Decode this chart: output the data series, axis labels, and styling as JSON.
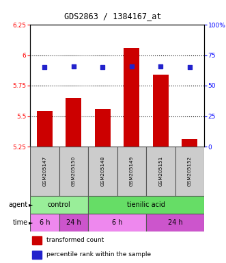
{
  "title": "GDS2863 / 1384167_at",
  "samples": [
    "GSM205147",
    "GSM205150",
    "GSM205148",
    "GSM205149",
    "GSM205151",
    "GSM205152"
  ],
  "bar_values": [
    5.54,
    5.65,
    5.56,
    6.06,
    5.84,
    5.31
  ],
  "bar_bottom": 5.25,
  "percentile_values": [
    65,
    66,
    65,
    66,
    66,
    65
  ],
  "ylim_left": [
    5.25,
    6.25
  ],
  "ylim_right": [
    0,
    100
  ],
  "yticks_left": [
    5.25,
    5.5,
    5.75,
    6.0,
    6.25
  ],
  "yticks_right": [
    0,
    25,
    50,
    75,
    100
  ],
  "ytick_labels_left": [
    "5.25",
    "5.5",
    "5.75",
    "6",
    "6.25"
  ],
  "ytick_labels_right": [
    "0",
    "25",
    "50",
    "75",
    "100%"
  ],
  "bar_color": "#cc0000",
  "dot_color": "#2222cc",
  "agent_row": [
    {
      "label": "control",
      "start": 0,
      "end": 2,
      "color": "#99ee99"
    },
    {
      "label": "tienilic acid",
      "start": 2,
      "end": 6,
      "color": "#66dd66"
    }
  ],
  "time_row": [
    {
      "label": "6 h",
      "start": 0,
      "end": 1,
      "color": "#ee88ee"
    },
    {
      "label": "24 h",
      "start": 1,
      "end": 2,
      "color": "#cc55cc"
    },
    {
      "label": "6 h",
      "start": 2,
      "end": 4,
      "color": "#ee88ee"
    },
    {
      "label": "24 h",
      "start": 4,
      "end": 6,
      "color": "#cc55cc"
    }
  ],
  "legend_items": [
    {
      "color": "#cc0000",
      "label": "transformed count"
    },
    {
      "color": "#2222cc",
      "label": "percentile rank within the sample"
    }
  ],
  "dotted_yticks": [
    5.5,
    5.75,
    6.0
  ],
  "bg_color": "#ffffff"
}
